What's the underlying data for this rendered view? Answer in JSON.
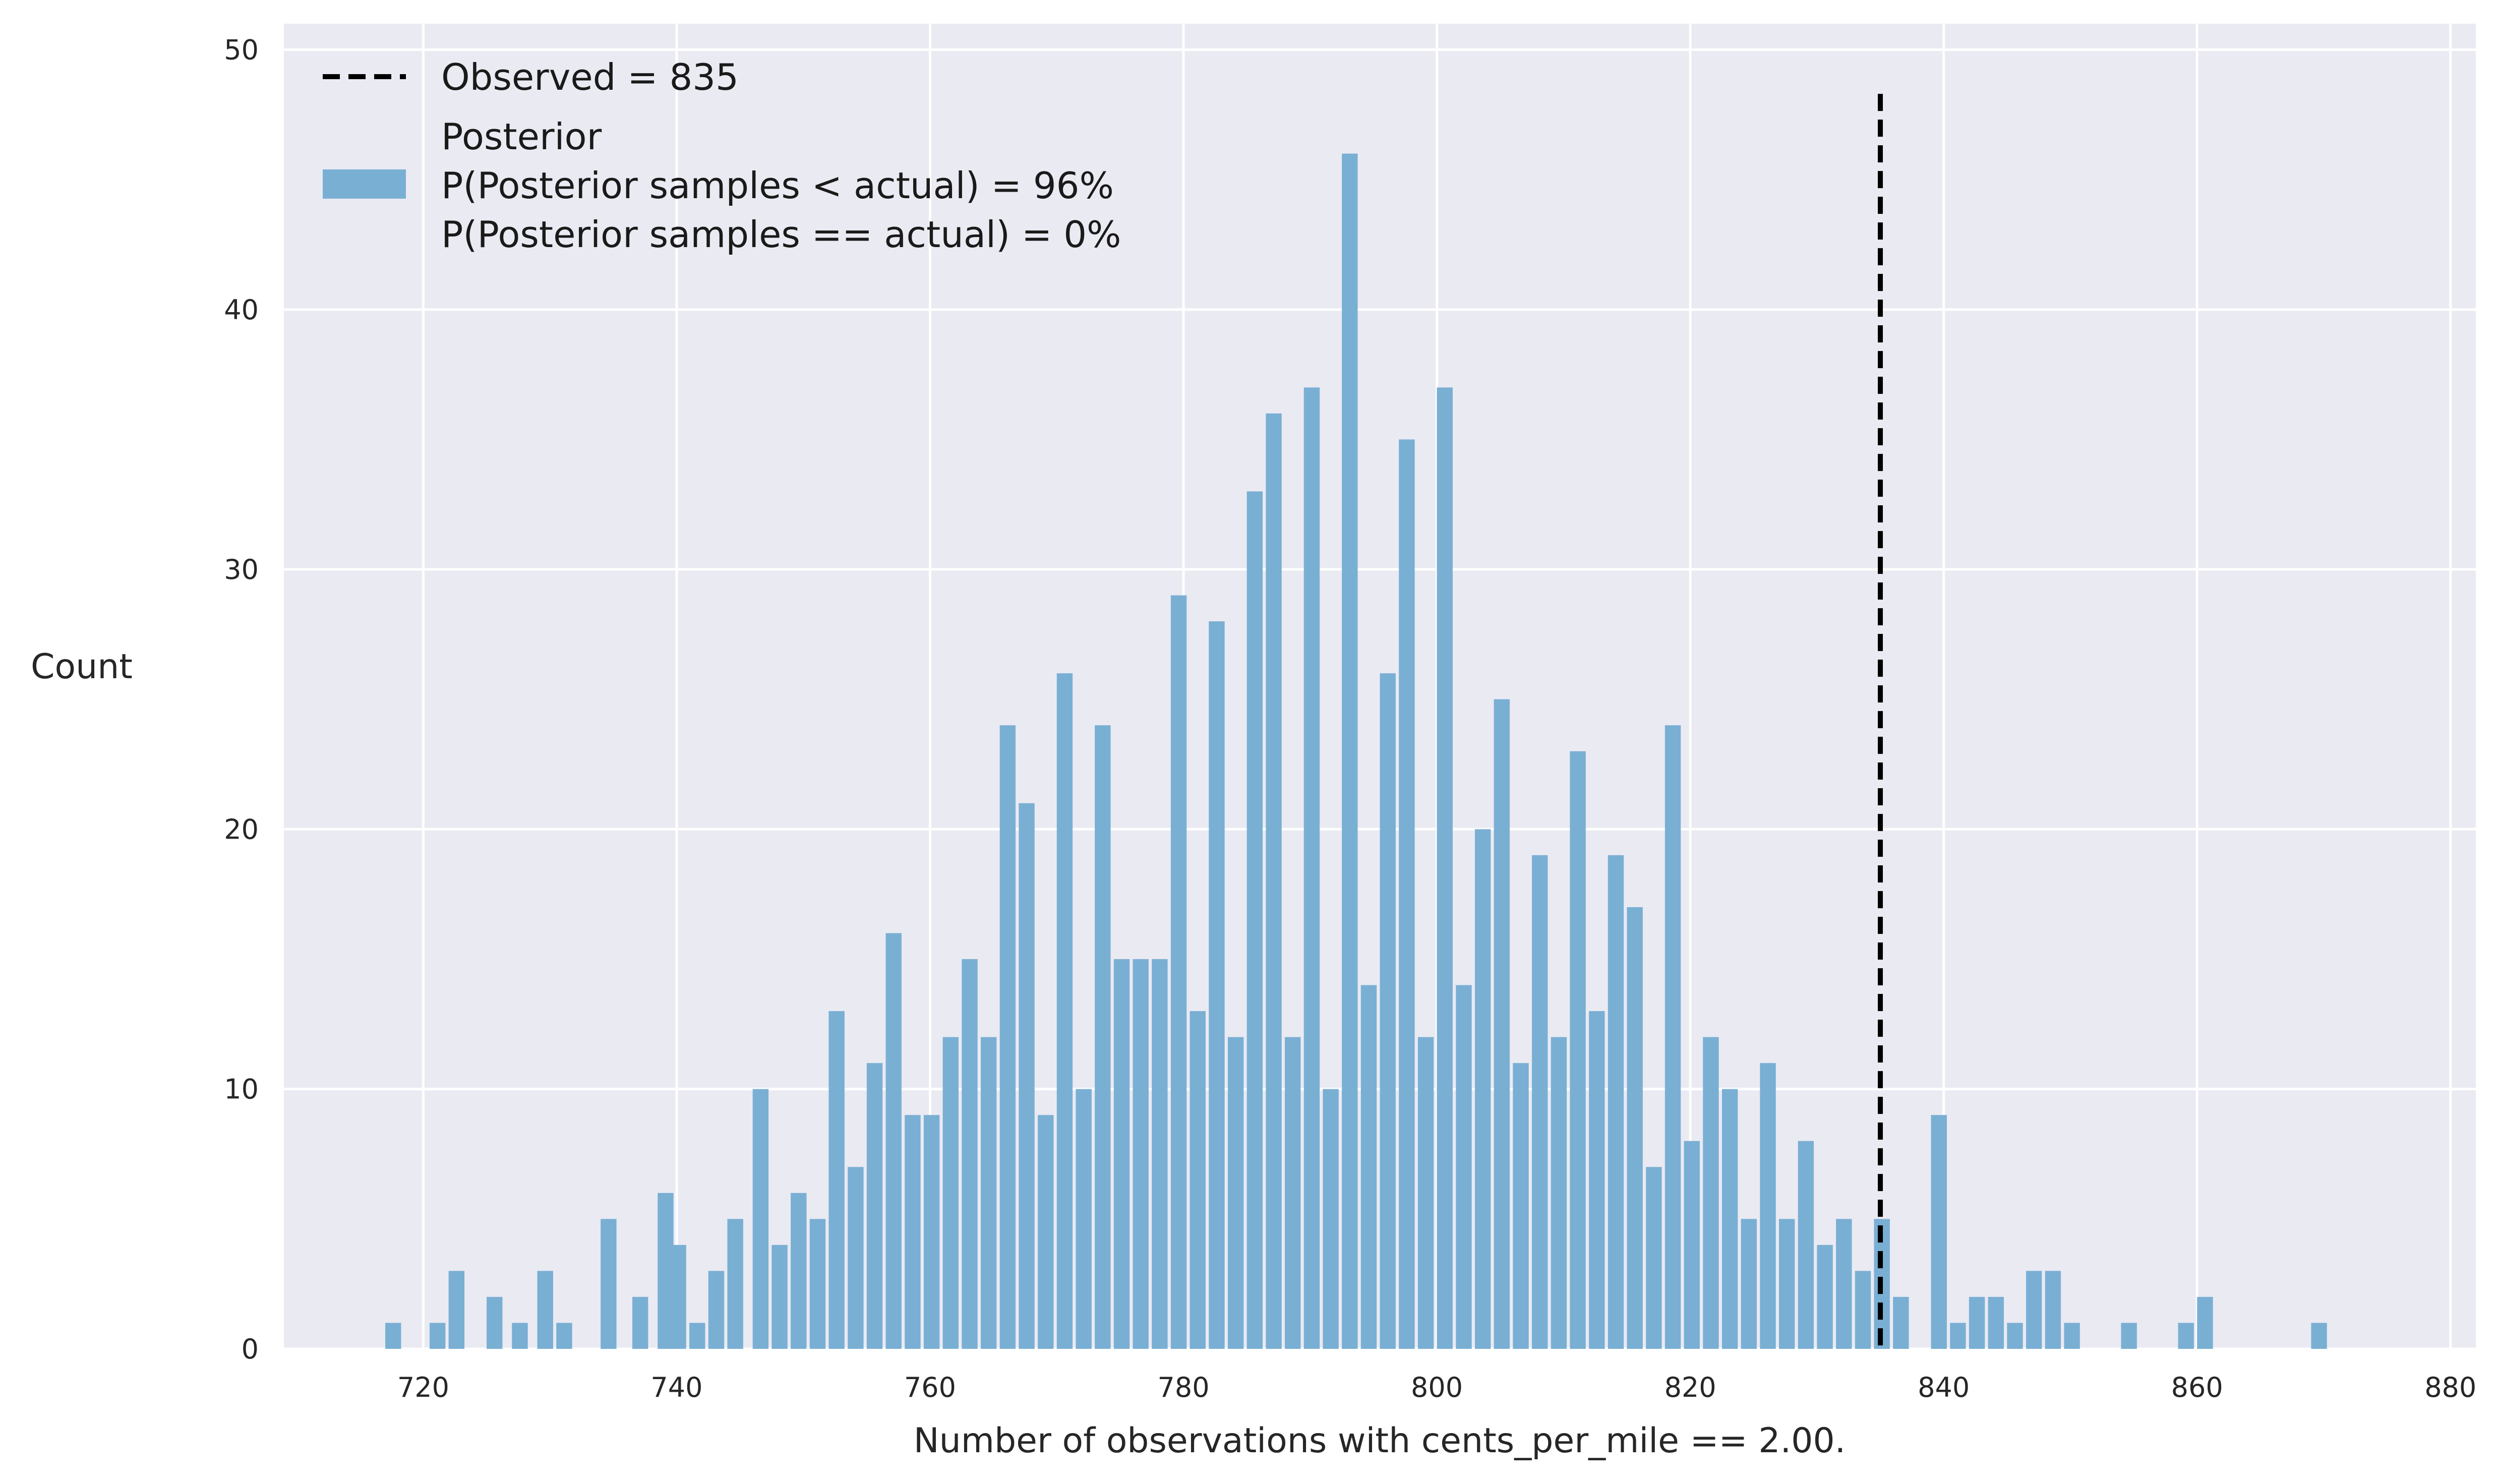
{
  "chart_data": {
    "type": "bar",
    "xlabel": "Number of observations with cents_per_mile == 2.00.",
    "ylabel": "Count",
    "xlim": [
      709,
      882
    ],
    "ylim": [
      0,
      51
    ],
    "xticks": [
      720,
      740,
      760,
      780,
      800,
      820,
      840,
      860,
      880
    ],
    "yticks": [
      0,
      10,
      20,
      30,
      40,
      50
    ],
    "grid": true,
    "legend_position": "top-left",
    "bin_width": 1.25,
    "bins": [
      {
        "x": 717,
        "count": 1
      },
      {
        "x": 720.5,
        "count": 1
      },
      {
        "x": 722,
        "count": 3
      },
      {
        "x": 725,
        "count": 2
      },
      {
        "x": 727,
        "count": 1
      },
      {
        "x": 729,
        "count": 3
      },
      {
        "x": 730.5,
        "count": 1
      },
      {
        "x": 734,
        "count": 5
      },
      {
        "x": 736.5,
        "count": 2
      },
      {
        "x": 738.5,
        "count": 6
      },
      {
        "x": 739.5,
        "count": 4
      },
      {
        "x": 741,
        "count": 1
      },
      {
        "x": 742.5,
        "count": 3
      },
      {
        "x": 744,
        "count": 5
      },
      {
        "x": 746,
        "count": 10
      },
      {
        "x": 747.5,
        "count": 4
      },
      {
        "x": 749,
        "count": 6
      },
      {
        "x": 750.5,
        "count": 5
      },
      {
        "x": 752,
        "count": 13
      },
      {
        "x": 753.5,
        "count": 7
      },
      {
        "x": 755,
        "count": 11
      },
      {
        "x": 756.5,
        "count": 16
      },
      {
        "x": 758,
        "count": 9
      },
      {
        "x": 759.5,
        "count": 9
      },
      {
        "x": 761,
        "count": 12
      },
      {
        "x": 762.5,
        "count": 15
      },
      {
        "x": 764,
        "count": 12
      },
      {
        "x": 765.5,
        "count": 24
      },
      {
        "x": 767,
        "count": 21
      },
      {
        "x": 768.5,
        "count": 9
      },
      {
        "x": 770,
        "count": 26
      },
      {
        "x": 771.5,
        "count": 10
      },
      {
        "x": 773,
        "count": 24
      },
      {
        "x": 774.5,
        "count": 15
      },
      {
        "x": 776,
        "count": 15
      },
      {
        "x": 777.5,
        "count": 15
      },
      {
        "x": 779,
        "count": 29
      },
      {
        "x": 780.5,
        "count": 13
      },
      {
        "x": 782,
        "count": 28
      },
      {
        "x": 783.5,
        "count": 12
      },
      {
        "x": 785,
        "count": 33
      },
      {
        "x": 786.5,
        "count": 36
      },
      {
        "x": 788,
        "count": 12
      },
      {
        "x": 789.5,
        "count": 37
      },
      {
        "x": 791,
        "count": 10
      },
      {
        "x": 792.5,
        "count": 46
      },
      {
        "x": 794,
        "count": 14
      },
      {
        "x": 795.5,
        "count": 26
      },
      {
        "x": 797,
        "count": 35
      },
      {
        "x": 798.5,
        "count": 12
      },
      {
        "x": 800,
        "count": 37
      },
      {
        "x": 801.5,
        "count": 14
      },
      {
        "x": 803,
        "count": 20
      },
      {
        "x": 804.5,
        "count": 25
      },
      {
        "x": 806,
        "count": 11
      },
      {
        "x": 807.5,
        "count": 19
      },
      {
        "x": 809,
        "count": 12
      },
      {
        "x": 810.5,
        "count": 23
      },
      {
        "x": 812,
        "count": 13
      },
      {
        "x": 813.5,
        "count": 19
      },
      {
        "x": 815,
        "count": 17
      },
      {
        "x": 816.5,
        "count": 7
      },
      {
        "x": 818,
        "count": 24
      },
      {
        "x": 819.5,
        "count": 8
      },
      {
        "x": 821,
        "count": 12
      },
      {
        "x": 822.5,
        "count": 10
      },
      {
        "x": 824,
        "count": 5
      },
      {
        "x": 825.5,
        "count": 11
      },
      {
        "x": 827,
        "count": 5
      },
      {
        "x": 828.5,
        "count": 8
      },
      {
        "x": 830,
        "count": 4
      },
      {
        "x": 831.5,
        "count": 5
      },
      {
        "x": 833,
        "count": 3
      },
      {
        "x": 834.5,
        "count": 5
      },
      {
        "x": 836,
        "count": 2
      },
      {
        "x": 839,
        "count": 9
      },
      {
        "x": 840.5,
        "count": 1
      },
      {
        "x": 842,
        "count": 2
      },
      {
        "x": 843.5,
        "count": 2
      },
      {
        "x": 845,
        "count": 1
      },
      {
        "x": 846.5,
        "count": 3
      },
      {
        "x": 848,
        "count": 3
      },
      {
        "x": 849.5,
        "count": 1
      },
      {
        "x": 854,
        "count": 1
      },
      {
        "x": 858.5,
        "count": 1
      },
      {
        "x": 860,
        "count": 2
      },
      {
        "x": 869,
        "count": 1
      }
    ],
    "observed_value": 835,
    "observed_line_top": 48.3,
    "colors": {
      "bars": "#7aafd4",
      "background": "#eaeaf2",
      "grid": "#ffffff",
      "observed_line": "#000000"
    }
  },
  "legend": {
    "observed_label": "Observed = 835",
    "posterior_lines": [
      "Posterior",
      "P(Posterior samples < actual) = 96%",
      "P(Posterior samples == actual) = 0%"
    ]
  }
}
